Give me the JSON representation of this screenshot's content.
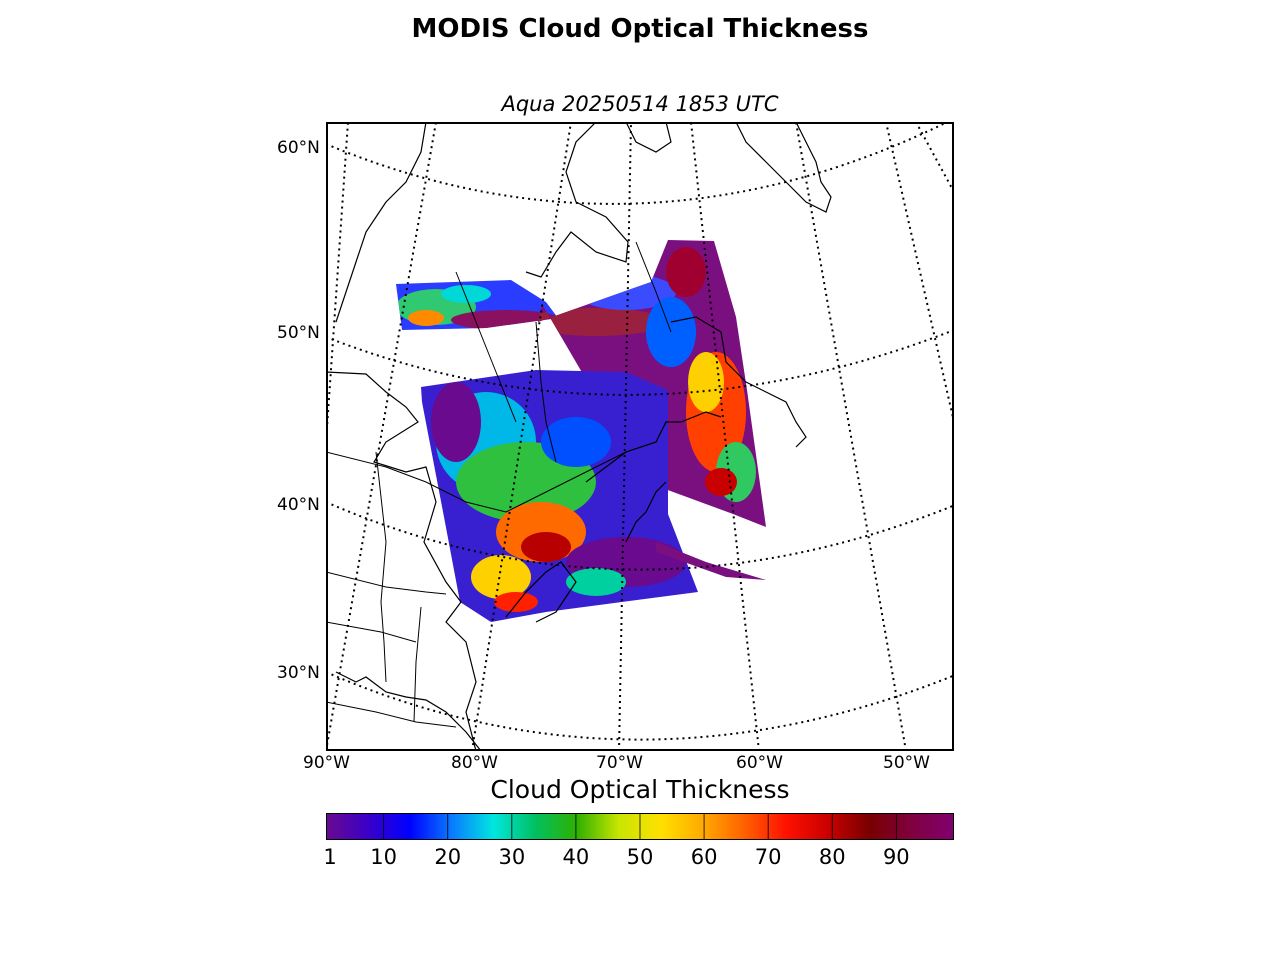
{
  "title": "MODIS Cloud Optical Thickness",
  "subtitle": "Aqua 20250514 1853 UTC",
  "lat_labels": [
    "60°N",
    "50°N",
    "40°N",
    "30°N"
  ],
  "lon_labels": [
    "90°W",
    "80°W",
    "70°W",
    "60°W",
    "50°W"
  ],
  "colorbar": {
    "title": "Cloud Optical Thickness",
    "ticks": [
      "1",
      "10",
      "20",
      "30",
      "40",
      "50",
      "60",
      "70",
      "80",
      "90"
    ],
    "min": 1,
    "max": 99,
    "colors": [
      "#6a0a8e",
      "#3a00c8",
      "#0000ff",
      "#0a7aff",
      "#00e6e0",
      "#00c060",
      "#30b000",
      "#c8e600",
      "#ffe000",
      "#ffaa00",
      "#ff6000",
      "#ff1000",
      "#c80000",
      "#780000",
      "#800040",
      "#800070"
    ]
  },
  "map": {
    "projection": "polar stereographic (Lambert-style conic view)",
    "graticule": "dotted",
    "features": [
      "coastlines",
      "country borders",
      "state/province borders"
    ]
  }
}
